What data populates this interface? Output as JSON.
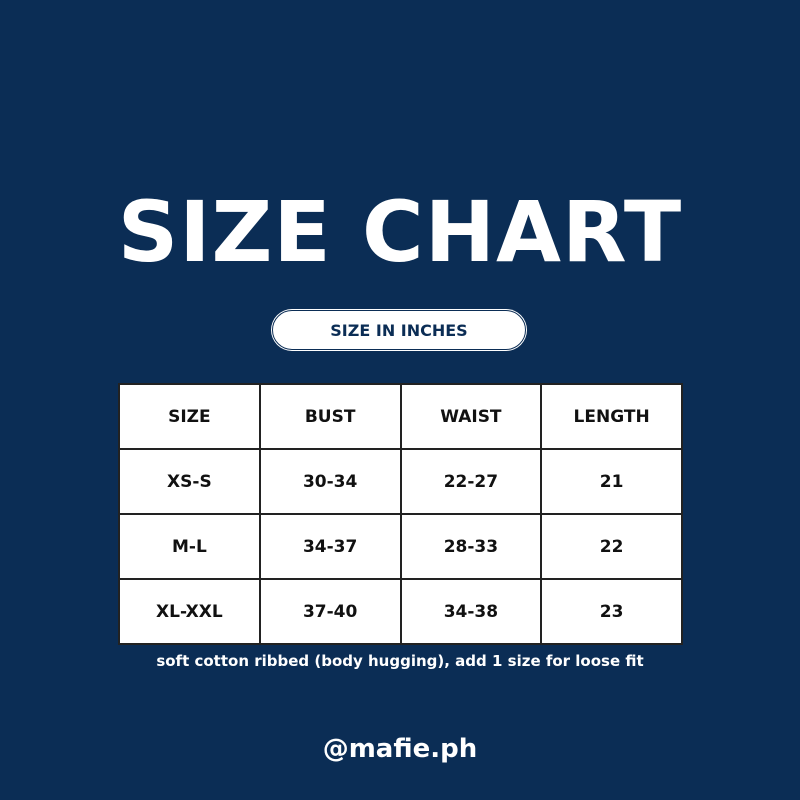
{
  "title": "SIZE CHART",
  "unit_label": "SIZE IN INCHES",
  "table": {
    "headers": [
      "SIZE",
      "BUST",
      "WAIST",
      "LENGTH"
    ],
    "rows": [
      [
        "XS-S",
        "30-34",
        "22-27",
        "21"
      ],
      [
        "M-L",
        "34-37",
        "28-33",
        "22"
      ],
      [
        "XL-XXL",
        "37-40",
        "34-38",
        "23"
      ]
    ]
  },
  "note": "soft cotton ribbed (body hugging), add 1 size for loose fit",
  "handle": "@mafie.ph",
  "colors": {
    "background": "#0b2d55",
    "table": "#ffffff",
    "text": "#ffffff"
  }
}
